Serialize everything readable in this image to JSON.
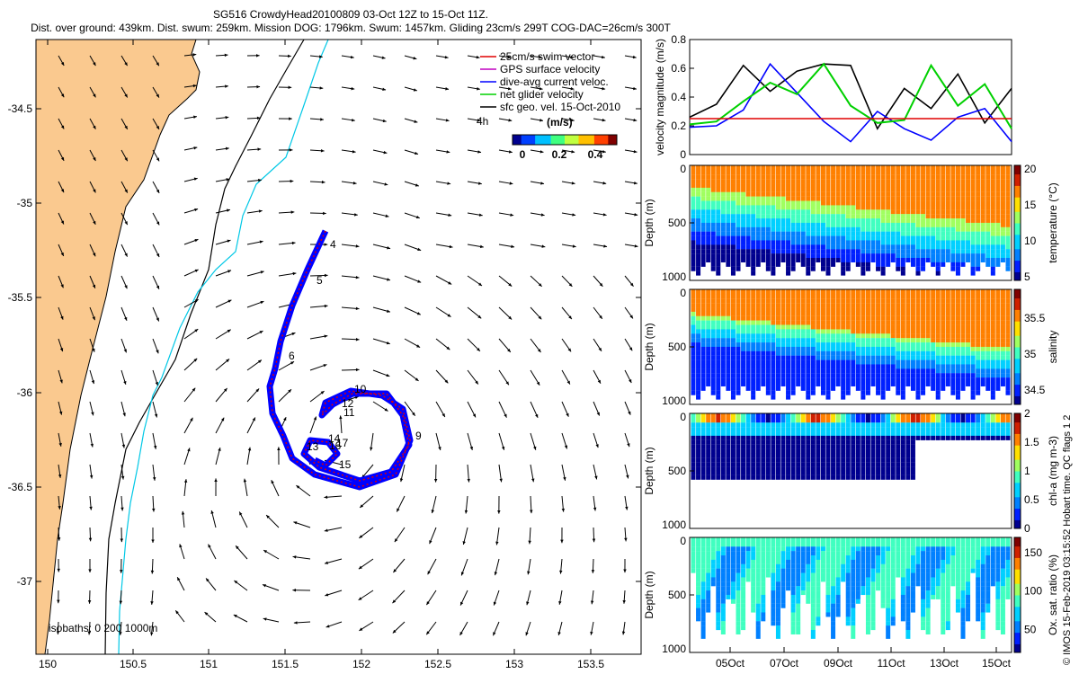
{
  "header": {
    "line1": "SG516 CrowdyHead20100809 03-Oct 12Z to 15-Oct 11Z.",
    "line2": "Dist. over ground: 439km. Dist. swum: 259km. Mission DOG: 1796km. Swum: 1457km. Gliding 23cm/s 299T COG-DAC=26cm/s 300T"
  },
  "colors": {
    "land": "#fac98f",
    "coast_line": "#000000",
    "isobath_200": "#00c8e6",
    "isobath_1000": "#000000",
    "swim_vector": "#e00000",
    "dac_vector": "#0000ff",
    "gps_vector": "#c000c0",
    "net_vector": "#00d000",
    "arrow": "#000000"
  },
  "map": {
    "lon_ticks": [
      "150",
      "150.5",
      "151",
      "151.5",
      "152",
      "152.5",
      "153",
      "153.5"
    ],
    "lat_ticks": [
      "-34.5",
      "-35",
      "-35.5",
      "-36",
      "-36.5",
      "-37"
    ],
    "legend": [
      {
        "label": "25cm/s swim vector",
        "color": "#e00000"
      },
      {
        "label": "GPS surface velocity",
        "color": "#c000c0"
      },
      {
        "label": "dive-avg current veloc.",
        "color": "#0000ff"
      },
      {
        "label": "net glider velocity",
        "color": "#00d000"
      },
      {
        "label": "sfc geo. vel. 15-Oct-2010",
        "color": "#000000"
      }
    ],
    "speed_unit": "(m/s)",
    "legend_4h": "4h",
    "colorbar_ticks": [
      "0",
      "0.2",
      "0.4"
    ],
    "isobaths_label": "isobaths: 0   200  1000m",
    "day_labels": [
      "4",
      "5",
      "6",
      "9",
      "10",
      "11",
      "12",
      "13",
      "14",
      "15",
      "16",
      "17"
    ]
  },
  "chart_data": [
    {
      "type": "line",
      "title": "",
      "ylabel": "velocity magnitude (m/s)",
      "ylim": [
        0,
        0.8
      ],
      "y_ticks": [
        "0",
        "0.2",
        "0.4",
        "0.6",
        "0.8"
      ],
      "x": [
        0,
        1,
        2,
        3,
        4,
        5,
        6,
        7,
        8,
        9,
        10,
        11,
        12
      ],
      "series": [
        {
          "name": "",
          "color": "#000000",
          "values": [
            0.26,
            0.35,
            0.62,
            0.44,
            0.58,
            0.63,
            0.62,
            0.18,
            0.46,
            0.32,
            0.56,
            0.22,
            0.46
          ]
        },
        {
          "name": "",
          "color": "#0000ff",
          "values": [
            0.19,
            0.2,
            0.31,
            0.63,
            0.43,
            0.23,
            0.09,
            0.3,
            0.18,
            0.1,
            0.26,
            0.32,
            0.09
          ]
        },
        {
          "name": "",
          "color": "#00d000",
          "values": [
            0.21,
            0.23,
            0.37,
            0.5,
            0.42,
            0.63,
            0.34,
            0.22,
            0.24,
            0.62,
            0.34,
            0.49,
            0.18
          ]
        },
        {
          "name": "",
          "color": "#e00000",
          "values": [
            0.25,
            0.25,
            0.25,
            0.25,
            0.25,
            0.25,
            0.25,
            0.25,
            0.25,
            0.25,
            0.25,
            0.25,
            0.25
          ]
        }
      ]
    },
    {
      "type": "heatmap",
      "ylabel": "Depth (m)",
      "ylim": [
        1000,
        0
      ],
      "y_ticks": [
        "0",
        "500",
        "1000"
      ],
      "colorbar_label": "temperature (°C)",
      "colorbar_ticks": [
        "5",
        "10",
        "15",
        "20"
      ],
      "colorbar_range": [
        4.5,
        20.5
      ]
    },
    {
      "type": "heatmap",
      "ylabel": "Depth (m)",
      "ylim": [
        1000,
        0
      ],
      "y_ticks": [
        "0",
        "500",
        "1000"
      ],
      "colorbar_label": "salinity",
      "colorbar_ticks": [
        "34.5",
        "35",
        "35.5"
      ],
      "colorbar_range": [
        34.3,
        35.9
      ]
    },
    {
      "type": "heatmap",
      "ylabel": "Depth (m)",
      "ylim": [
        1000,
        0
      ],
      "y_ticks": [
        "0",
        "500",
        "1000"
      ],
      "colorbar_label": "chl-a (mg m-3)",
      "colorbar_ticks": [
        "0",
        "0.5",
        "1",
        "1.5",
        "2"
      ],
      "colorbar_range": [
        0,
        2
      ]
    },
    {
      "type": "heatmap",
      "ylabel": "Depth (m)",
      "ylim": [
        1000,
        0
      ],
      "y_ticks": [
        "0",
        "500",
        "1000"
      ],
      "colorbar_label": "Ox. sat. ratio (%)",
      "colorbar_ticks": [
        "50",
        "100",
        "150"
      ],
      "colorbar_range": [
        20,
        170
      ],
      "x_ticks": [
        "05Oct",
        "07Oct",
        "09Oct",
        "11Oct",
        "13Oct",
        "15Oct"
      ]
    }
  ],
  "footer": {
    "credit": "© IMOS 15-Feb-2019 03:15:52 Hobart time. QC flags 1  2"
  }
}
